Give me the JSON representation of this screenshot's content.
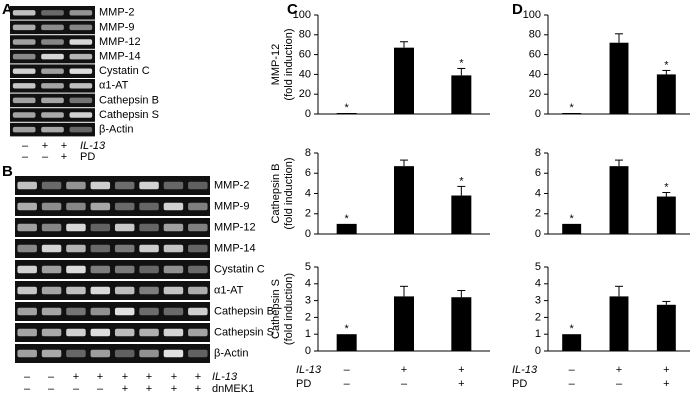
{
  "panels": {
    "A": {
      "label": "A",
      "bands": [
        "MMP-2",
        "MMP-9",
        "MMP-12",
        "MMP-14",
        "Cystatin C",
        "α1-AT",
        "Cathepsin B",
        "Cathepsin S",
        "β-Actin"
      ],
      "conditions": [
        {
          "name": "IL-13",
          "signs": [
            "–",
            "+",
            "+"
          ]
        },
        {
          "name": "PD",
          "signs": [
            "–",
            "–",
            "+"
          ]
        }
      ]
    },
    "B": {
      "label": "B",
      "bands": [
        "MMP-2",
        "MMP-9",
        "MMP-12",
        "MMP-14",
        "Cystatin C",
        "α1-AT",
        "Cathepsin B",
        "Cathepsin S",
        "β-Actin"
      ],
      "conditions": [
        {
          "name": "IL-13",
          "signs": [
            "–",
            "–",
            "+",
            "+",
            "+",
            "+",
            "+",
            "+"
          ]
        },
        {
          "name": "dnMEK1",
          "signs": [
            "–",
            "–",
            "–",
            "–",
            "+",
            "+",
            "+",
            "+"
          ]
        }
      ]
    },
    "C": {
      "label": "C",
      "conditions": [
        {
          "name": "IL-13",
          "signs": [
            "–",
            "+",
            "+"
          ]
        },
        {
          "name": "PD",
          "signs": [
            "–",
            "–",
            "+"
          ]
        }
      ]
    },
    "D": {
      "label": "D",
      "conditions": [
        {
          "name": "IL-13",
          "signs": [
            "–",
            "+",
            "+"
          ]
        },
        {
          "name": "PD",
          "signs": [
            "–",
            "–",
            "+"
          ]
        }
      ]
    }
  },
  "chart_data": [
    {
      "type": "bar",
      "ylabel": [
        "MMP-12",
        "(fold induction)"
      ],
      "categories": [
        null,
        null,
        null
      ],
      "values": [
        1,
        67,
        39
      ],
      "errors": [
        0,
        6,
        7
      ],
      "color": "#000000",
      "ylim": [
        0,
        100
      ],
      "yticks": [
        0,
        20,
        40,
        60,
        80,
        100
      ],
      "annotations": [
        {
          "index": 0,
          "text": "*"
        },
        {
          "index": 2,
          "text": "*"
        }
      ]
    },
    {
      "type": "bar",
      "ylabel": [
        "Cathepsin B",
        "(fold induction)"
      ],
      "categories": [
        null,
        null,
        null
      ],
      "values": [
        1,
        6.7,
        3.8
      ],
      "errors": [
        0,
        0.6,
        0.9
      ],
      "color": "#000000",
      "ylim": [
        0,
        8
      ],
      "yticks": [
        0,
        2,
        4,
        6,
        8
      ],
      "annotations": [
        {
          "index": 0,
          "text": "*"
        },
        {
          "index": 2,
          "text": "*"
        }
      ]
    },
    {
      "type": "bar",
      "ylabel": [
        "Cathepsin S",
        "(fold induction)"
      ],
      "categories": [
        null,
        null,
        null
      ],
      "values": [
        1,
        3.25,
        3.2
      ],
      "errors": [
        0,
        0.6,
        0.4
      ],
      "color": "#000000",
      "ylim": [
        0,
        5
      ],
      "yticks": [
        0,
        1,
        2,
        3,
        4,
        5
      ],
      "annotations": [
        {
          "index": 0,
          "text": "*"
        }
      ]
    },
    {
      "type": "bar",
      "categories": [
        null,
        null,
        null
      ],
      "values": [
        1,
        72,
        40
      ],
      "errors": [
        0,
        9,
        4
      ],
      "color": "#000000",
      "ylim": [
        0,
        100
      ],
      "yticks": [
        0,
        20,
        40,
        60,
        80,
        100
      ],
      "annotations": [
        {
          "index": 0,
          "text": "*"
        },
        {
          "index": 2,
          "text": "*"
        }
      ]
    },
    {
      "type": "bar",
      "categories": [
        null,
        null,
        null
      ],
      "values": [
        1,
        6.7,
        3.7
      ],
      "errors": [
        0,
        0.6,
        0.4
      ],
      "color": "#000000",
      "ylim": [
        0,
        8
      ],
      "yticks": [
        0,
        2,
        4,
        6,
        8
      ],
      "annotations": [
        {
          "index": 0,
          "text": "*"
        },
        {
          "index": 2,
          "text": "*"
        }
      ]
    },
    {
      "type": "bar",
      "categories": [
        null,
        null,
        null
      ],
      "values": [
        1,
        3.25,
        2.75
      ],
      "errors": [
        0,
        0.6,
        0.2
      ],
      "color": "#000000",
      "ylim": [
        0,
        5
      ],
      "yticks": [
        0,
        1,
        2,
        3,
        4,
        5
      ],
      "annotations": [
        {
          "index": 0,
          "text": "*"
        }
      ]
    }
  ]
}
